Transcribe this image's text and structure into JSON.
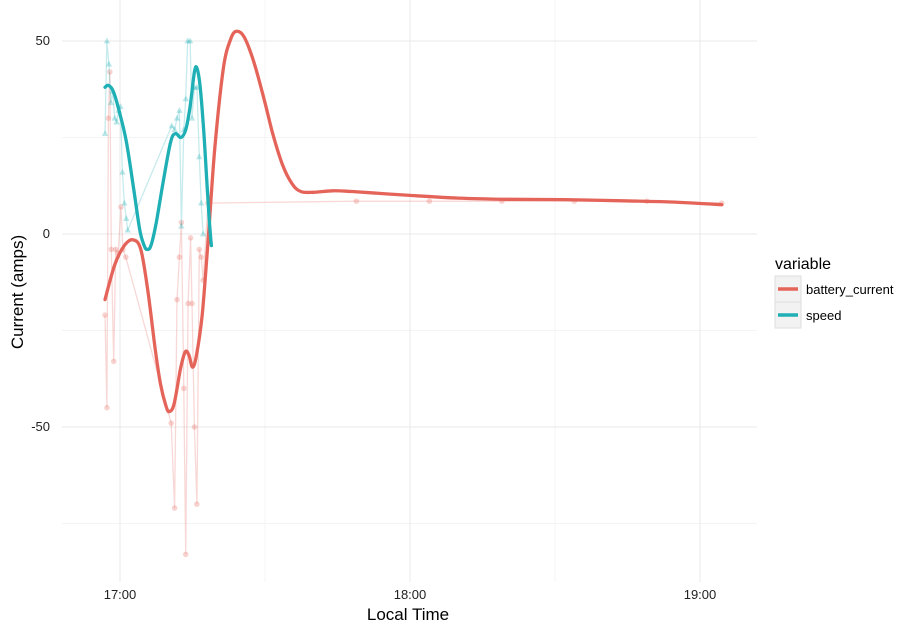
{
  "chart_data": {
    "type": "line",
    "title": "",
    "xlabel": "Local Time",
    "ylabel": "Current (amps)",
    "x_axis": {
      "min_minutes": 1008,
      "max_minutes": 1148,
      "ticks": [
        {
          "minutes": 1020,
          "label": "17:00"
        },
        {
          "minutes": 1080,
          "label": "18:00"
        },
        {
          "minutes": 1140,
          "label": "19:00"
        }
      ],
      "minor_ticks_minutes": [
        1050,
        1110
      ]
    },
    "y_axis": {
      "ylim": [
        -90,
        60
      ],
      "ticks": [
        {
          "value": 50,
          "label": "50"
        },
        {
          "value": 0,
          "label": "0"
        },
        {
          "value": -50,
          "label": "-50"
        }
      ],
      "minor_ticks": [
        25,
        -25,
        -75
      ]
    },
    "grid": true,
    "legend": {
      "title": "variable",
      "placement": "right"
    },
    "series": [
      {
        "name": "battery_current",
        "color": "#E5645A",
        "raw": [
          {
            "x": 1016.9,
            "y": -21
          },
          {
            "x": 1017.3,
            "y": -45
          },
          {
            "x": 1017.6,
            "y": 30
          },
          {
            "x": 1017.9,
            "y": 42
          },
          {
            "x": 1018.2,
            "y": -4
          },
          {
            "x": 1018.7,
            "y": -33
          },
          {
            "x": 1019.1,
            "y": -4
          },
          {
            "x": 1019.6,
            "y": -5
          },
          {
            "x": 1020.2,
            "y": 7
          },
          {
            "x": 1020.6,
            "y": -4
          },
          {
            "x": 1021.2,
            "y": -6
          },
          {
            "x": 1030.6,
            "y": -49
          },
          {
            "x": 1031.3,
            "y": -71
          },
          {
            "x": 1031.8,
            "y": -17
          },
          {
            "x": 1032.3,
            "y": -6
          },
          {
            "x": 1032.7,
            "y": 3
          },
          {
            "x": 1033.2,
            "y": -40
          },
          {
            "x": 1033.6,
            "y": -83
          },
          {
            "x": 1034.1,
            "y": -18
          },
          {
            "x": 1034.6,
            "y": -1
          },
          {
            "x": 1034.9,
            "y": -18
          },
          {
            "x": 1035.4,
            "y": -50
          },
          {
            "x": 1035.9,
            "y": -70
          },
          {
            "x": 1036.4,
            "y": -4
          },
          {
            "x": 1036.8,
            "y": -6
          },
          {
            "x": 1037.2,
            "y": -12
          },
          {
            "x": 1038.2,
            "y": 8
          },
          {
            "x": 1068.9,
            "y": 8.5
          },
          {
            "x": 1084,
            "y": 8.5
          },
          {
            "x": 1099,
            "y": 8.5
          },
          {
            "x": 1114,
            "y": 8.5
          },
          {
            "x": 1129,
            "y": 8.5
          },
          {
            "x": 1144.5,
            "y": 8
          }
        ],
        "smooth": [
          {
            "x": 1016.9,
            "y": -17
          },
          {
            "x": 1018.9,
            "y": -8
          },
          {
            "x": 1020.9,
            "y": -3
          },
          {
            "x": 1022.7,
            "y": -1.5
          },
          {
            "x": 1024.3,
            "y": -4
          },
          {
            "x": 1025.8,
            "y": -15
          },
          {
            "x": 1027.3,
            "y": -30
          },
          {
            "x": 1028.4,
            "y": -39
          },
          {
            "x": 1029.5,
            "y": -44.5
          },
          {
            "x": 1030.2,
            "y": -46
          },
          {
            "x": 1031.2,
            "y": -44
          },
          {
            "x": 1032.5,
            "y": -35
          },
          {
            "x": 1033.5,
            "y": -30.5
          },
          {
            "x": 1034.3,
            "y": -31.5
          },
          {
            "x": 1035.0,
            "y": -34.5
          },
          {
            "x": 1035.8,
            "y": -31.5
          },
          {
            "x": 1037.0,
            "y": -21
          },
          {
            "x": 1038.2,
            "y": -2
          },
          {
            "x": 1039.6,
            "y": 22
          },
          {
            "x": 1041.4,
            "y": 43
          },
          {
            "x": 1042.9,
            "y": 50.5
          },
          {
            "x": 1044.1,
            "y": 52.5
          },
          {
            "x": 1045.7,
            "y": 51
          },
          {
            "x": 1047.7,
            "y": 44.5
          },
          {
            "x": 1049.8,
            "y": 35
          },
          {
            "x": 1051.6,
            "y": 26
          },
          {
            "x": 1053.6,
            "y": 18
          },
          {
            "x": 1055.6,
            "y": 13
          },
          {
            "x": 1057.4,
            "y": 11
          },
          {
            "x": 1060.0,
            "y": 10.8
          },
          {
            "x": 1064.0,
            "y": 11.2
          },
          {
            "x": 1068.0,
            "y": 11.0
          },
          {
            "x": 1074.0,
            "y": 10.5
          },
          {
            "x": 1080.0,
            "y": 10.0
          },
          {
            "x": 1090.0,
            "y": 9.3
          },
          {
            "x": 1100.0,
            "y": 9.0
          },
          {
            "x": 1112.0,
            "y": 8.9
          },
          {
            "x": 1124.0,
            "y": 8.6
          },
          {
            "x": 1134.0,
            "y": 8.3
          },
          {
            "x": 1144.5,
            "y": 7.6
          }
        ]
      },
      {
        "name": "speed",
        "color": "#1FB0B6",
        "raw": [
          {
            "x": 1016.9,
            "y": 26
          },
          {
            "x": 1017.3,
            "y": 50
          },
          {
            "x": 1017.7,
            "y": 44
          },
          {
            "x": 1018.1,
            "y": 34
          },
          {
            "x": 1018.5,
            "y": 37
          },
          {
            "x": 1018.9,
            "y": 30
          },
          {
            "x": 1019.3,
            "y": 29
          },
          {
            "x": 1019.7,
            "y": 32
          },
          {
            "x": 1020.1,
            "y": 33
          },
          {
            "x": 1020.5,
            "y": 16
          },
          {
            "x": 1020.9,
            "y": 8
          },
          {
            "x": 1021.3,
            "y": 4
          },
          {
            "x": 1021.6,
            "y": 1
          },
          {
            "x": 1030.7,
            "y": 28
          },
          {
            "x": 1031.3,
            "y": 27
          },
          {
            "x": 1031.8,
            "y": 30
          },
          {
            "x": 1032.3,
            "y": 32
          },
          {
            "x": 1032.7,
            "y": 2
          },
          {
            "x": 1033.2,
            "y": 27
          },
          {
            "x": 1033.6,
            "y": 35
          },
          {
            "x": 1034.0,
            "y": 50
          },
          {
            "x": 1034.5,
            "y": 50
          },
          {
            "x": 1034.9,
            "y": 30
          },
          {
            "x": 1035.4,
            "y": 38
          },
          {
            "x": 1035.9,
            "y": 38
          },
          {
            "x": 1036.4,
            "y": 20
          },
          {
            "x": 1036.8,
            "y": 8
          },
          {
            "x": 1037.2,
            "y": 0
          }
        ],
        "smooth": [
          {
            "x": 1016.9,
            "y": 38
          },
          {
            "x": 1017.6,
            "y": 38.5
          },
          {
            "x": 1018.6,
            "y": 37
          },
          {
            "x": 1019.8,
            "y": 32
          },
          {
            "x": 1021.3,
            "y": 24
          },
          {
            "x": 1022.8,
            "y": 12
          },
          {
            "x": 1024.1,
            "y": 1
          },
          {
            "x": 1025.0,
            "y": -3
          },
          {
            "x": 1025.6,
            "y": -4
          },
          {
            "x": 1026.4,
            "y": -3
          },
          {
            "x": 1027.5,
            "y": 3
          },
          {
            "x": 1029.0,
            "y": 14
          },
          {
            "x": 1030.5,
            "y": 24
          },
          {
            "x": 1031.5,
            "y": 26
          },
          {
            "x": 1032.6,
            "y": 25
          },
          {
            "x": 1033.6,
            "y": 27
          },
          {
            "x": 1034.5,
            "y": 33
          },
          {
            "x": 1035.4,
            "y": 42
          },
          {
            "x": 1035.9,
            "y": 43
          },
          {
            "x": 1036.5,
            "y": 39
          },
          {
            "x": 1037.2,
            "y": 29
          },
          {
            "x": 1037.9,
            "y": 15
          },
          {
            "x": 1038.4,
            "y": 5
          },
          {
            "x": 1038.9,
            "y": -3
          }
        ]
      }
    ]
  }
}
